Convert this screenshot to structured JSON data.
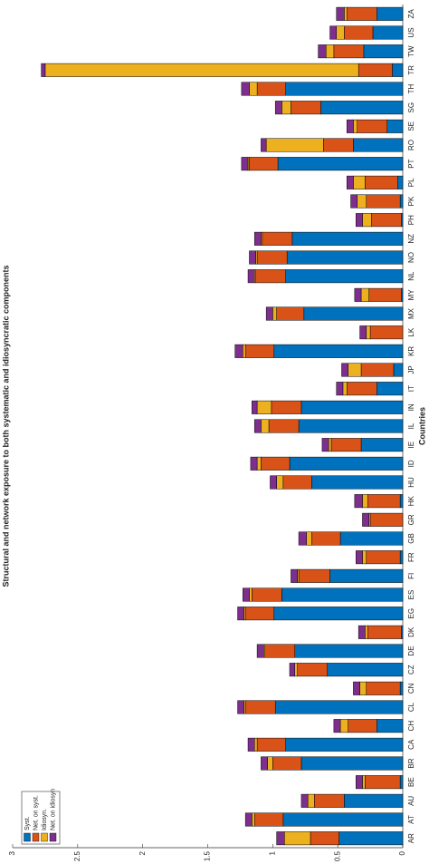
{
  "chart_data": {
    "type": "stacked_bar",
    "title": "Structural and network exposure to both systematic and idiosyncratic components",
    "x_label": "Countries",
    "categories": [
      "AR",
      "AT",
      "AU",
      "BE",
      "BR",
      "CA",
      "CH",
      "CL",
      "CN",
      "CZ",
      "DE",
      "DK",
      "EG",
      "ES",
      "FI",
      "FR",
      "GB",
      "GR",
      "HK",
      "HU",
      "ID",
      "IE",
      "IL",
      "IN",
      "IT",
      "JP",
      "KR",
      "LK",
      "MX",
      "MY",
      "NL",
      "NO",
      "NZ",
      "PH",
      "PK",
      "PL",
      "PT",
      "RO",
      "SE",
      "SG",
      "TH",
      "TR",
      "TW",
      "US",
      "ZA"
    ],
    "series": [
      {
        "name": "Syst.",
        "color": "#0072bd",
        "values": [
          0.49,
          0.92,
          0.45,
          0.02,
          0.78,
          0.9,
          0.2,
          0.98,
          0.02,
          0.58,
          0.83,
          0.01,
          0.99,
          0.93,
          0.56,
          0.02,
          0.48,
          0,
          0.02,
          0.7,
          0.87,
          0.32,
          0.8,
          0.78,
          0.2,
          0.07,
          0.99,
          0,
          0.76,
          0.01,
          0.9,
          0.89,
          0.85,
          0.01,
          0.02,
          0.04,
          0.96,
          0.38,
          0.12,
          0.63,
          0.9,
          0.08,
          0.3,
          0.23,
          0.2
        ]
      },
      {
        "name": "Net. on syst.",
        "color": "#d95319",
        "values": [
          0.22,
          0.22,
          0.23,
          0.27,
          0.22,
          0.22,
          0.22,
          0.23,
          0.26,
          0.23,
          0.23,
          0.26,
          0.22,
          0.23,
          0.24,
          0.26,
          0.22,
          0.25,
          0.25,
          0.22,
          0.22,
          0.23,
          0.23,
          0.23,
          0.23,
          0.25,
          0.22,
          0.25,
          0.21,
          0.25,
          0.23,
          0.23,
          0.23,
          0.23,
          0.26,
          0.25,
          0.22,
          0.23,
          0.23,
          0.23,
          0.22,
          0.26,
          0.23,
          0.22,
          0.23
        ]
      },
      {
        "name": "Idiosyn.",
        "color": "#edb120",
        "values": [
          0.2,
          0.02,
          0.05,
          0.02,
          0.04,
          0.02,
          0.06,
          0.01,
          0.05,
          0.02,
          0.01,
          0.02,
          0.01,
          0.02,
          0.01,
          0.03,
          0.04,
          0.01,
          0.04,
          0.05,
          0.03,
          0.02,
          0.06,
          0.11,
          0.03,
          0.1,
          0.02,
          0.03,
          0.03,
          0.06,
          0.01,
          0.01,
          0.01,
          0.07,
          0.07,
          0.09,
          0.01,
          0.44,
          0.03,
          0.07,
          0.06,
          2.41,
          0.06,
          0.06,
          0.02
        ]
      },
      {
        "name": "Net. on idiosyn",
        "color": "#7e2f8e",
        "values": [
          0.06,
          0.05,
          0.05,
          0.05,
          0.05,
          0.05,
          0.05,
          0.05,
          0.05,
          0.04,
          0.05,
          0.05,
          0.05,
          0.05,
          0.05,
          0.05,
          0.06,
          0.05,
          0.06,
          0.05,
          0.05,
          0.05,
          0.05,
          0.04,
          0.05,
          0.05,
          0.06,
          0.05,
          0.05,
          0.05,
          0.05,
          0.05,
          0.05,
          0.05,
          0.05,
          0.05,
          0.05,
          0.04,
          0.05,
          0.05,
          0.06,
          0.03,
          0.06,
          0.05,
          0.06
        ]
      }
    ],
    "ylim": [
      0,
      3
    ],
    "yticks": [
      0,
      0.5,
      1,
      1.5,
      2,
      2.5,
      3
    ],
    "legend": "upper left"
  }
}
